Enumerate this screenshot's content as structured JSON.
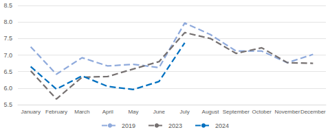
{
  "chart_data": {
    "type": "line",
    "categories": [
      "January",
      "February",
      "March",
      "April",
      "May",
      "June",
      "July",
      "August",
      "September",
      "October",
      "November",
      "December"
    ],
    "series": [
      {
        "name": "2019",
        "color": "#8faadc",
        "values": [
          7.25,
          6.42,
          6.92,
          6.67,
          6.72,
          6.62,
          7.97,
          7.62,
          7.12,
          7.12,
          6.77,
          7.02
        ]
      },
      {
        "name": "2023",
        "color": "#767171",
        "values": [
          6.52,
          5.67,
          6.33,
          6.35,
          6.58,
          6.8,
          7.68,
          7.5,
          7.05,
          7.22,
          6.77,
          6.75
        ]
      },
      {
        "name": "2024",
        "color": "#0070c0",
        "values": [
          6.65,
          5.97,
          6.37,
          6.05,
          5.96,
          6.2,
          7.37,
          null,
          null,
          null,
          null,
          null
        ]
      }
    ],
    "ylim": [
      5.5,
      8.5
    ],
    "yticks": [
      5.5,
      {
        "value": 6,
        "label": "6.0"
      },
      6.5,
      {
        "value": 7,
        "label": "7.0"
      },
      7.5,
      {
        "value": 8,
        "label": "8.0"
      },
      8.5
    ],
    "grid": true,
    "legend": "bottom",
    "marker": "none",
    "line_style": "dashed"
  }
}
